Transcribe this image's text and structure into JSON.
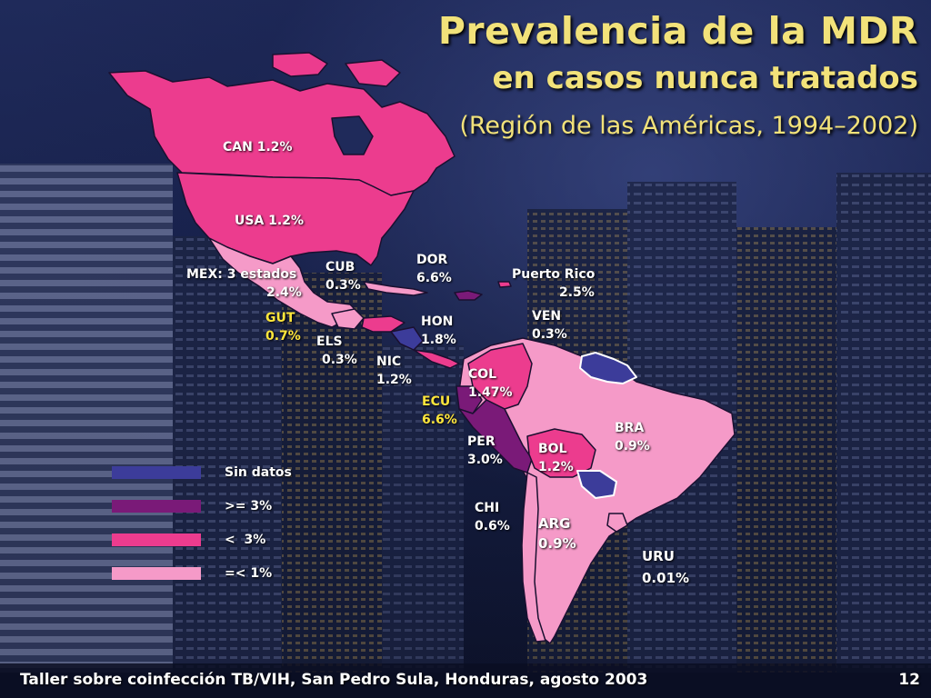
{
  "slide": {
    "title": "Prevalencia de la MDR",
    "subtitle": "en casos nunca tratados",
    "region": "(Región de las Américas, 1994–2002)",
    "footer": "Taller sobre coinfección TB/VIH, San Pedro Sula, Honduras, agosto 2003",
    "page_number": "12"
  },
  "colors": {
    "title": "#f2e27a",
    "no_data": "#3c3c9a",
    "ge_3": "#7a1a78",
    "lt_3": "#ec3c8e",
    "le_1": "#f59ac8"
  },
  "countries": {
    "can": {
      "name": "CAN",
      "value": "1.2%"
    },
    "usa": {
      "name": "USA",
      "value": "1.2%"
    },
    "mex": {
      "name": "MEX: 3 estados",
      "value": "2.4%"
    },
    "cub": {
      "name": "CUB",
      "value": "0.3%"
    },
    "dor": {
      "name": "DOR",
      "value": "6.6%"
    },
    "pri": {
      "name": "Puerto Rico",
      "value": "2.5%"
    },
    "gut": {
      "name": "GUT",
      "value": "0.7%"
    },
    "els": {
      "name": "ELS",
      "value": "0.3%"
    },
    "hon": {
      "name": "HON",
      "value": "1.8%"
    },
    "nic": {
      "name": "NIC",
      "value": "1.2%"
    },
    "ven": {
      "name": "VEN",
      "value": "0.3%"
    },
    "col": {
      "name": "COL",
      "value": "1.47%"
    },
    "ecu": {
      "name": "ECU",
      "value": "6.6%"
    },
    "per": {
      "name": "PER",
      "value": "3.0%"
    },
    "bra": {
      "name": "BRA",
      "value": "0.9%"
    },
    "bol": {
      "name": "BOL",
      "value": "1.2%"
    },
    "chi": {
      "name": "CHI",
      "value": "0.6%"
    },
    "arg": {
      "name": "ARG",
      "value": "0.9%"
    },
    "uru": {
      "name": "URU",
      "value": "0.01%"
    }
  },
  "legend": [
    {
      "label": "Sin datos",
      "color": "#3c3c9a"
    },
    {
      "label": ">= 3%",
      "color": "#7a1a78"
    },
    {
      "label": "<  3%",
      "color": "#ec3c8e"
    },
    {
      "label": "=< 1%",
      "color": "#f59ac8"
    }
  ]
}
